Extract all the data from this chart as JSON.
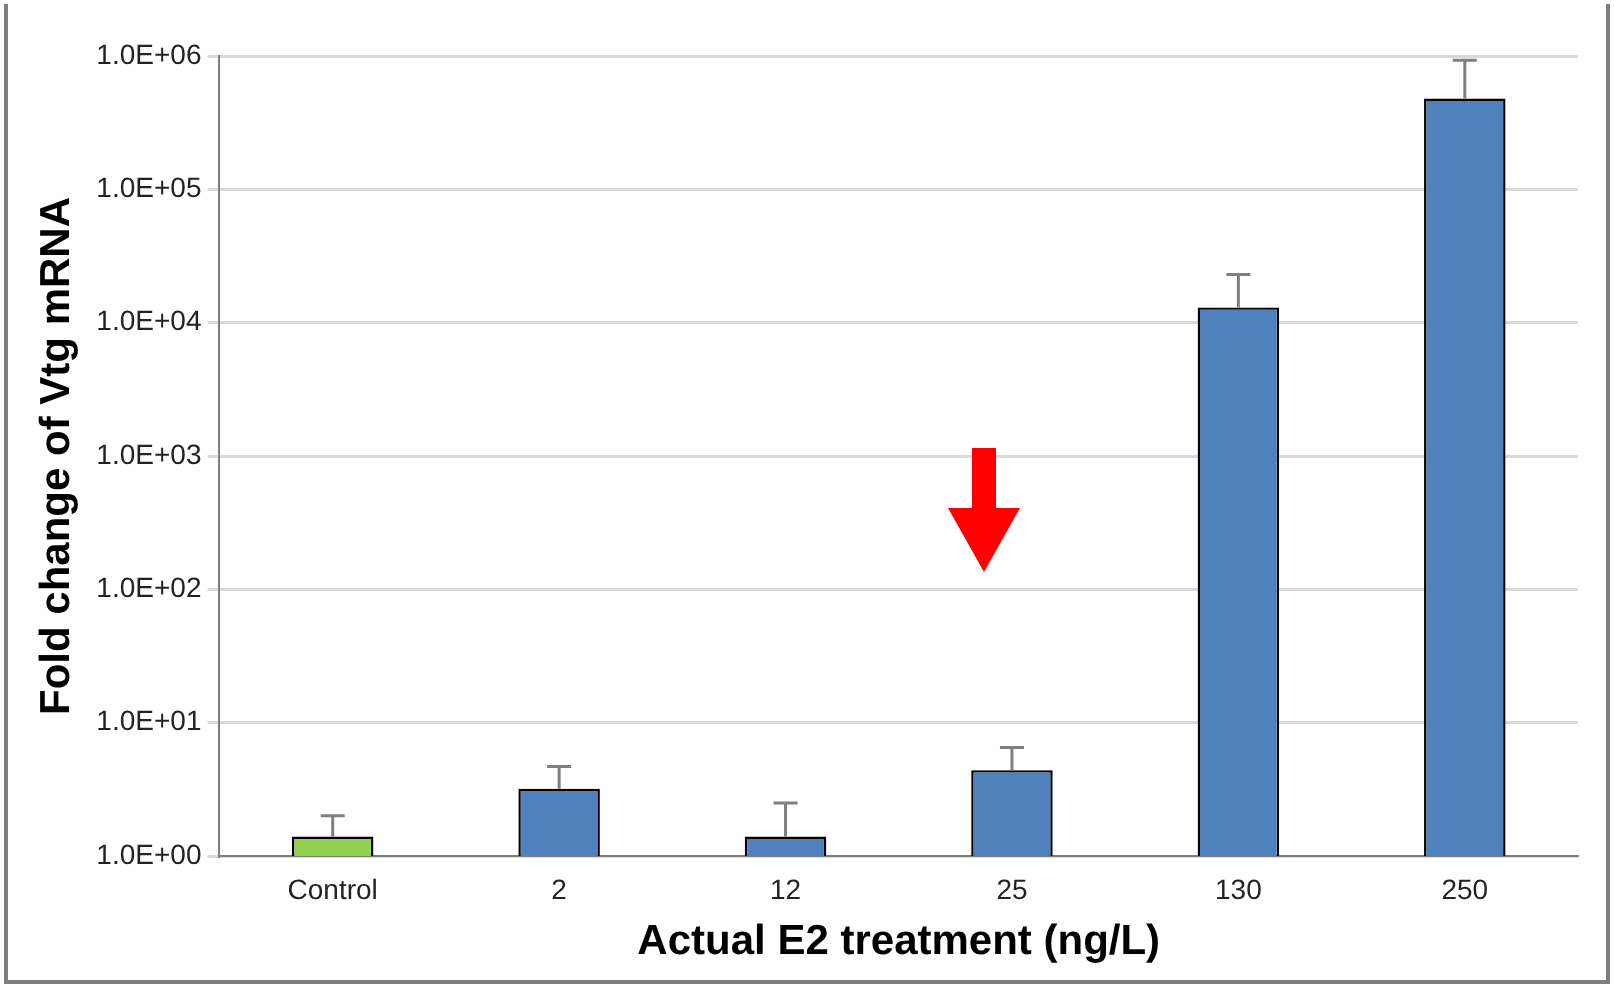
{
  "chart_data": {
    "type": "bar",
    "xlabel": "Actual E2 treatment (ng/L)",
    "ylabel": "Fold change of Vtg mRNA",
    "categories": [
      "Control",
      "2",
      "12",
      "25",
      "130",
      "250"
    ],
    "values": [
      1.4,
      3.2,
      1.4,
      4.4,
      13000,
      480000
    ],
    "colors": [
      "#92d050",
      "#4f81bd",
      "#4f81bd",
      "#4f81bd",
      "#4f81bd",
      "#4f81bd"
    ],
    "errors": [
      [
        1.4,
        2.0
      ],
      [
        3.2,
        4.7
      ],
      [
        1.4,
        2.5
      ],
      [
        4.4,
        6.5
      ],
      [
        13000,
        23000
      ],
      [
        480000,
        930000
      ]
    ],
    "log": "y",
    "grid": "y",
    "ylim": [
      1,
      1000000
    ],
    "yticks": [
      {
        "value": 1,
        "label": "1.0E+00"
      },
      {
        "value": 10,
        "label": "1.0E+01"
      },
      {
        "value": 100,
        "label": "1.0E+02"
      },
      {
        "value": 1000,
        "label": "1.0E+03"
      },
      {
        "value": 10000,
        "label": "1.0E+04"
      },
      {
        "value": 100000,
        "label": "1.0E+05"
      },
      {
        "value": 1000000,
        "label": "1.0E+06"
      }
    ]
  }
}
